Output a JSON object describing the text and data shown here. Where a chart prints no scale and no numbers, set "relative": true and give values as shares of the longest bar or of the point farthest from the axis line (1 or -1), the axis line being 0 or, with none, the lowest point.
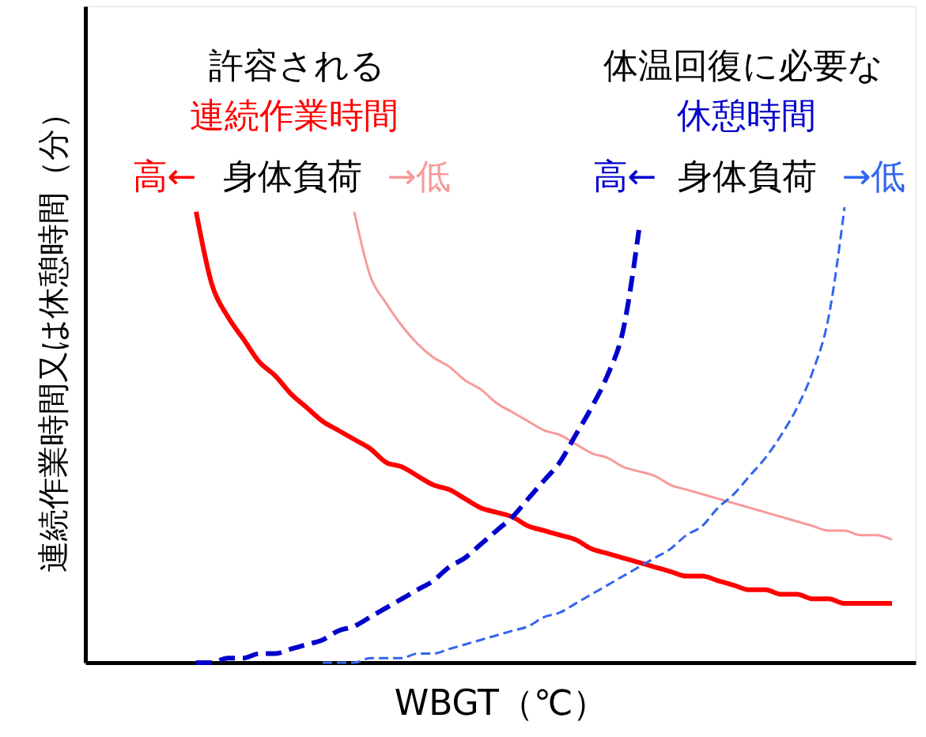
{
  "chart_data": {
    "type": "line",
    "relative": true,
    "xlabel": "WBGT（℃）",
    "ylabel": "連続作業時間又は休憩時間（分）",
    "categories": [
      null,
      null,
      null,
      null,
      null,
      null,
      null,
      null,
      null,
      null,
      null,
      null,
      null,
      null,
      null,
      null,
      null,
      null,
      null,
      null,
      null,
      null,
      null,
      null,
      null,
      null,
      null,
      null,
      null,
      null,
      null,
      null,
      null,
      null,
      null,
      null,
      null,
      null,
      null,
      null,
      null,
      null,
      null,
      null,
      null,
      null,
      null,
      null,
      null,
      null,
      null,
      null
    ],
    "series": [
      {
        "color": "#ff0000",
        "line_style": "solid",
        "values": [
          null,
          null,
          null,
          null,
          null,
          null,
          null,
          0.99,
          0.83,
          0.76,
          0.71,
          0.66,
          0.63,
          0.59,
          0.56,
          0.53,
          0.51,
          0.49,
          0.47,
          0.44,
          0.43,
          0.41,
          0.39,
          0.38,
          0.36,
          0.34,
          0.33,
          0.32,
          0.3,
          0.29,
          0.28,
          0.27,
          0.25,
          0.24,
          0.23,
          0.22,
          0.21,
          0.2,
          0.19,
          0.19,
          0.18,
          0.17,
          0.16,
          0.16,
          0.15,
          0.15,
          0.14,
          0.14,
          0.13,
          0.13,
          0.13,
          0.13
        ]
      },
      {
        "color": "#f79a9a",
        "line_style": "solid",
        "values": [
          null,
          null,
          null,
          null,
          null,
          null,
          null,
          null,
          null,
          null,
          null,
          null,
          null,
          null,
          null,
          null,
          null,
          0.99,
          0.85,
          0.79,
          0.74,
          0.7,
          0.67,
          0.65,
          0.62,
          0.6,
          0.57,
          0.55,
          0.53,
          0.51,
          0.5,
          0.48,
          0.46,
          0.45,
          0.43,
          0.42,
          0.41,
          0.39,
          0.38,
          0.37,
          0.36,
          0.35,
          0.34,
          0.33,
          0.32,
          0.31,
          0.3,
          0.29,
          0.29,
          0.28,
          0.28,
          0.27
        ]
      },
      {
        "color": "#0000cc",
        "line_style": "dashed",
        "values": [
          null,
          null,
          null,
          null,
          null,
          null,
          null,
          0,
          0,
          0.01,
          0.01,
          0.02,
          0.02,
          0.03,
          0.04,
          0.05,
          0.07,
          0.08,
          0.1,
          0.12,
          0.14,
          0.16,
          0.18,
          0.21,
          0.23,
          0.26,
          0.29,
          0.32,
          0.36,
          0.4,
          0.44,
          0.5,
          0.56,
          0.63,
          0.73,
          0.95,
          null,
          null,
          null,
          null,
          null,
          null,
          null,
          null,
          null,
          null,
          null,
          null,
          null,
          null,
          null,
          null
        ]
      },
      {
        "color": "#3366ee",
        "line_style": "dashed",
        "values": [
          null,
          null,
          null,
          null,
          null,
          null,
          null,
          null,
          null,
          null,
          null,
          null,
          null,
          null,
          null,
          0,
          0,
          0,
          0.01,
          0.01,
          0.01,
          0.02,
          0.02,
          0.03,
          0.04,
          0.05,
          0.06,
          0.07,
          0.08,
          0.1,
          0.11,
          0.13,
          0.15,
          0.17,
          0.19,
          0.21,
          0.23,
          0.25,
          0.28,
          0.3,
          0.34,
          0.37,
          0.41,
          0.45,
          0.5,
          0.56,
          0.64,
          0.76,
          1.0,
          null,
          null,
          null
        ]
      }
    ],
    "annotations": [
      "許容される",
      "連続作業時間",
      "高←",
      "身体負荷",
      "→低",
      "体温回復に必要な",
      "休憩時間",
      "高←",
      "身体負荷",
      "→低"
    ],
    "grid": false,
    "marker": "none"
  }
}
